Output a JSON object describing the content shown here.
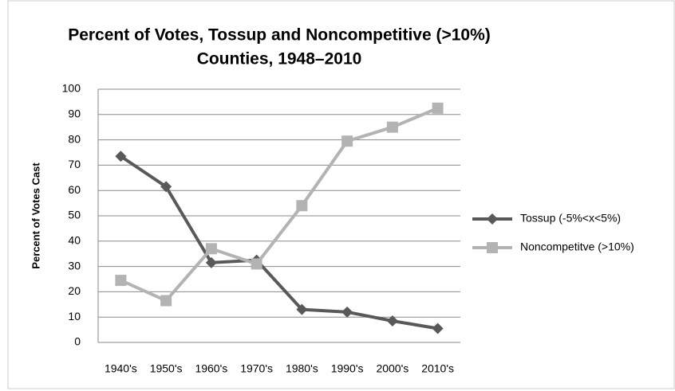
{
  "chart_data": {
    "type": "line",
    "title": [
      "Percent of Votes, Tossup and Noncompetitive (>10%)",
      "Counties, 1948–2010"
    ],
    "y_label": "Percent of Votes Cast",
    "categories": [
      "1940's",
      "1950's",
      "1960's",
      "1970's",
      "1980's",
      "1990's",
      "2000's",
      "2010's"
    ],
    "series": [
      {
        "name": "Tossup (-5%<x<5%)",
        "color": "#595959",
        "marker": "diamond",
        "values": [
          73.5,
          61.5,
          31.5,
          32.5,
          13,
          12,
          8.5,
          5.5
        ]
      },
      {
        "name": "Noncompetitve (>10%)",
        "color": "#b3b3b3",
        "marker": "square",
        "values": [
          24.5,
          16.5,
          37,
          31,
          54,
          79.5,
          85,
          92.5
        ]
      }
    ],
    "ylim": [
      0,
      100
    ],
    "yticks": [
      0,
      10,
      20,
      30,
      40,
      50,
      60,
      70,
      80,
      90,
      100
    ],
    "grid": true,
    "legend": "right"
  }
}
